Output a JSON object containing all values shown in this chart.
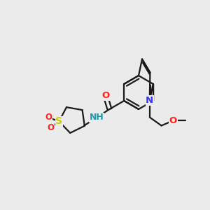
{
  "bg_color": "#ebebeb",
  "bond_color": "#1a1a1a",
  "N_color": "#3333ff",
  "O_color": "#ff2222",
  "S_color": "#cccc00",
  "NH_color": "#2299aa",
  "lw": 1.6,
  "dbo": 0.018,
  "fs": 9.5,
  "xlim": [
    0,
    10
  ],
  "ylim": [
    0,
    10
  ]
}
